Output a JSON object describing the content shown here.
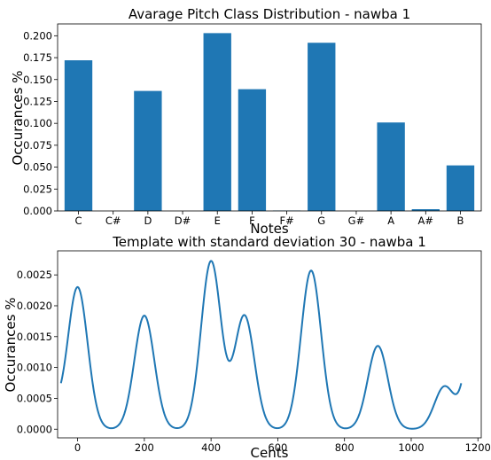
{
  "chart_data": [
    {
      "type": "bar",
      "title": "Avarage Pitch Class Distribution - nawba 1",
      "xlabel": "Notes",
      "ylabel": "Occurances %",
      "categories": [
        "C",
        "C#",
        "D",
        "D#",
        "E",
        "F",
        "F#",
        "G",
        "G#",
        "A",
        "A#",
        "B"
      ],
      "values": [
        0.172,
        0.0,
        0.137,
        0.0,
        0.203,
        0.139,
        0.0005,
        0.192,
        0.0,
        0.101,
        0.002,
        0.052
      ],
      "ylim": [
        0,
        0.2135
      ],
      "yticks": [
        "0.000",
        "0.025",
        "0.050",
        "0.075",
        "0.100",
        "0.125",
        "0.150",
        "0.175",
        "0.200"
      ],
      "color": "#1f77b4",
      "grid": false
    },
    {
      "type": "line",
      "title": "Template with standard deviation 30 - nawba 1",
      "xlabel": "Cents",
      "ylabel": "Occurances %",
      "xlim": [
        -60,
        1210
      ],
      "ylim": [
        -0.00014,
        0.00289
      ],
      "xticks": [
        "0",
        "200",
        "400",
        "600",
        "800",
        "1000",
        "1200"
      ],
      "yticks": [
        "0.0000",
        "0.0005",
        "0.0010",
        "0.0015",
        "0.0020",
        "0.0025"
      ],
      "color": "#1f77b4",
      "grid": false,
      "peaks": [
        {
          "cents": 0,
          "height": 0.0023
        },
        {
          "cents": 200,
          "height": 0.00184
        },
        {
          "cents": 400,
          "height": 0.00272
        },
        {
          "cents": 500,
          "height": 0.00184
        },
        {
          "cents": 700,
          "height": 0.00257
        },
        {
          "cents": 900,
          "height": 0.00135
        },
        {
          "cents": 1100,
          "height": 0.00069
        }
      ],
      "sigma": 30,
      "x_range": [
        -50,
        1150
      ]
    }
  ]
}
